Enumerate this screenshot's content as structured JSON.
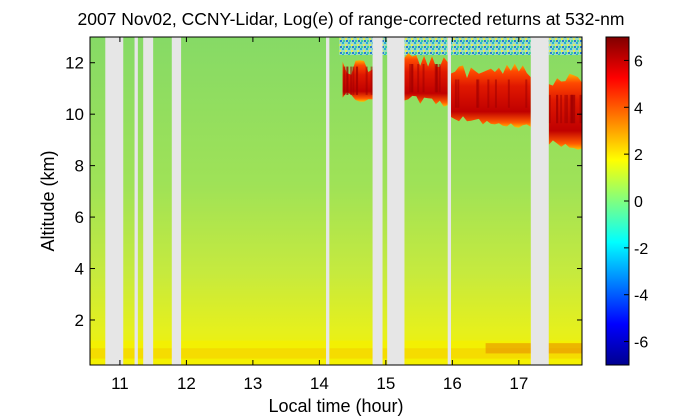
{
  "chart_data": {
    "type": "heatmap",
    "title": "2007 Nov02, CCNY-Lidar, Log(e) of range-corrected returns at 532-nm",
    "xlabel": "Local time (hour)",
    "ylabel": "Altitude (km)",
    "xlim": [
      10.55,
      17.95
    ],
    "ylim": [
      0.25,
      13.0
    ],
    "x_ticks": [
      11,
      12,
      13,
      14,
      15,
      16,
      17
    ],
    "y_ticks": [
      2,
      4,
      6,
      8,
      10,
      12
    ],
    "colorbar": {
      "range": [
        -7,
        7
      ],
      "ticks": [
        6,
        4,
        2,
        0,
        -2,
        -4,
        -6
      ],
      "colormap": "jet"
    },
    "no_data_gaps": [
      [
        10.78,
        11.05
      ],
      [
        11.22,
        11.27
      ],
      [
        11.35,
        11.5
      ],
      [
        11.78,
        11.92
      ],
      [
        14.1,
        14.15
      ],
      [
        14.8,
        14.95
      ],
      [
        15.02,
        15.28
      ],
      [
        15.93,
        15.98
      ],
      [
        17.18,
        17.45
      ]
    ],
    "cloud_segments": [
      {
        "x": [
          14.35,
          14.8
        ],
        "base_km": 10.6,
        "top_km": 12.1
      },
      {
        "x": [
          15.28,
          15.93
        ],
        "base_km": 10.5,
        "top_km": 12.4
      },
      {
        "x": [
          15.98,
          17.18
        ],
        "base_km": 9.7,
        "top_km": 12.0
      },
      {
        "x": [
          17.45,
          17.95
        ],
        "base_km": 8.8,
        "top_km": 11.7
      }
    ],
    "background_value": 0.5,
    "near_ground_value": 2.5,
    "cloud_value": 5.5,
    "colors": {
      "gap": "#e6e6e6",
      "background": "#8fe060",
      "near_ground": "#f4f000",
      "cloud": "#d81400",
      "noise": "#38c8d8"
    }
  }
}
